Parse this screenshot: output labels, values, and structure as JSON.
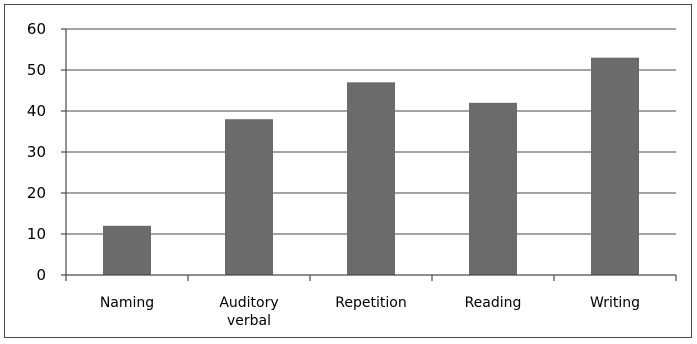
{
  "chart_data": {
    "type": "bar",
    "title": "",
    "xlabel": "",
    "ylabel": "",
    "categories": [
      "Naming",
      "Auditory verbal",
      "Repetition",
      "Reading",
      "Writing"
    ],
    "category_lines": [
      [
        "Naming"
      ],
      [
        "Auditory",
        "verbal"
      ],
      [
        "Repetition"
      ],
      [
        "Reading"
      ],
      [
        "Writing"
      ]
    ],
    "values": [
      12,
      38,
      47,
      42,
      53
    ],
    "ylim": [
      0,
      60
    ],
    "yticks": [
      0,
      10,
      20,
      30,
      40,
      50,
      60
    ],
    "grid": true,
    "legend": "none",
    "bar_color": "#6b6b6b"
  }
}
